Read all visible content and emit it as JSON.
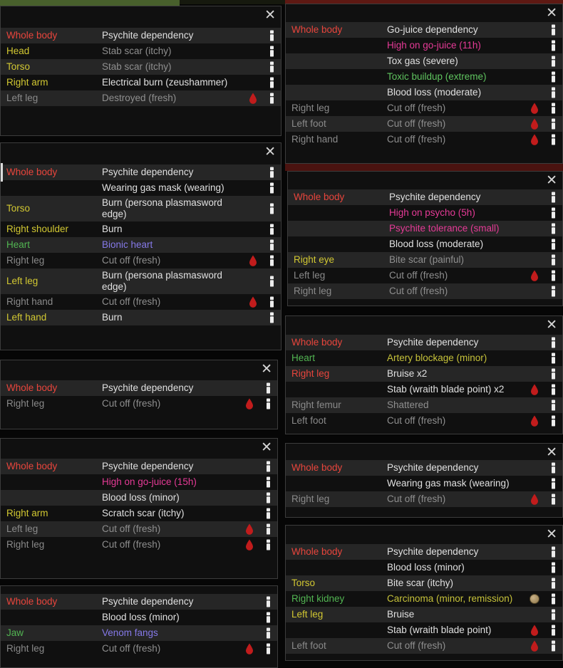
{
  "ui": {
    "close_glyph": "✕"
  },
  "colors": {
    "panel_bg": "#101010",
    "row_alt_bg": "#262626",
    "part_red": "#e8453c",
    "part_yellow": "#d2c832",
    "part_green": "#52b552",
    "part_gray": "#8a8a8a",
    "cond_white": "#e0e0e0",
    "cond_gray": "#8f8f8f",
    "cond_magenta": "#e53a96",
    "cond_green": "#5fc45f",
    "cond_purple": "#8579e8",
    "cond_yellow": "#c6c23a",
    "blood_red": "#c11c1c",
    "carcinoma_tan": "#b49c6a"
  },
  "icons": {
    "info": "info-icon",
    "bleeding": "blood-drop-icon",
    "tumor": "carcinoma-icon",
    "close": "close-icon",
    "scrollbar": "scrollbar-thumb"
  },
  "panels": [
    {
      "has_close": true,
      "rows": [
        {
          "part": "Whole body",
          "part_color": "red",
          "condition": "Psychite dependency",
          "condition_color": "white",
          "bleeding": false
        },
        {
          "part": "Head",
          "part_color": "yellow",
          "condition": "Stab scar (itchy)",
          "condition_color": "gray",
          "bleeding": false
        },
        {
          "part": "Torso",
          "part_color": "yellow",
          "condition": "Stab scar (itchy)",
          "condition_color": "gray",
          "bleeding": false
        },
        {
          "part": "Right arm",
          "part_color": "yellow",
          "condition": "Electrical burn (zeushammer)",
          "condition_color": "white",
          "bleeding": false
        },
        {
          "part": "Left leg",
          "part_color": "gray",
          "condition": "Destroyed (fresh)",
          "condition_color": "gray",
          "bleeding": true
        }
      ]
    },
    {
      "has_close": true,
      "rows": [
        {
          "part": "Whole body",
          "part_color": "red",
          "condition": "Go-juice dependency",
          "condition_color": "white",
          "bleeding": false
        },
        {
          "part": "",
          "part_color": "none",
          "condition": "High on go-juice (11h)",
          "condition_color": "magenta",
          "bleeding": false
        },
        {
          "part": "",
          "part_color": "none",
          "condition": "Tox gas (severe)",
          "condition_color": "white",
          "bleeding": false
        },
        {
          "part": "",
          "part_color": "none",
          "condition": "Toxic buildup (extreme)",
          "condition_color": "green",
          "bleeding": false
        },
        {
          "part": "",
          "part_color": "none",
          "condition": "Blood loss (moderate)",
          "condition_color": "white",
          "bleeding": false
        },
        {
          "part": "Right leg",
          "part_color": "gray",
          "condition": "Cut off (fresh)",
          "condition_color": "gray",
          "bleeding": true
        },
        {
          "part": "Left foot",
          "part_color": "gray",
          "condition": "Cut off (fresh)",
          "condition_color": "gray",
          "bleeding": true
        },
        {
          "part": "Right hand",
          "part_color": "gray",
          "condition": "Cut off (fresh)",
          "condition_color": "gray",
          "bleeding": true
        }
      ]
    },
    {
      "has_close": true,
      "rows": [
        {
          "part": "Whole body",
          "part_color": "red",
          "condition": "Psychite dependency",
          "condition_color": "white",
          "bleeding": false
        },
        {
          "part": "",
          "part_color": "none",
          "condition": "Wearing gas mask (wearing)",
          "condition_color": "white",
          "bleeding": false
        },
        {
          "part": "Torso",
          "part_color": "yellow",
          "condition": "Burn (persona plasmasword edge)",
          "condition_color": "white",
          "bleeding": false
        },
        {
          "part": "Right shoulder",
          "part_color": "yellow",
          "condition": "Burn",
          "condition_color": "white",
          "bleeding": false
        },
        {
          "part": "Heart",
          "part_color": "green",
          "condition": "Bionic heart",
          "condition_color": "purple",
          "bleeding": false
        },
        {
          "part": "Right leg",
          "part_color": "gray",
          "condition": "Cut off (fresh)",
          "condition_color": "gray",
          "bleeding": true
        },
        {
          "part": "Left leg",
          "part_color": "yellow",
          "condition": "Burn (persona plasmasword edge)",
          "condition_color": "white",
          "bleeding": false
        },
        {
          "part": "Right hand",
          "part_color": "gray",
          "condition": "Cut off (fresh)",
          "condition_color": "gray",
          "bleeding": true
        },
        {
          "part": "Left hand",
          "part_color": "yellow",
          "condition": "Burn",
          "condition_color": "white",
          "bleeding": false
        }
      ]
    },
    {
      "has_close": true,
      "rows": [
        {
          "part": "Whole body",
          "part_color": "red",
          "condition": "Psychite dependency",
          "condition_color": "white",
          "bleeding": false
        },
        {
          "part": "",
          "part_color": "none",
          "condition": "High on psycho (5h)",
          "condition_color": "magenta",
          "bleeding": false
        },
        {
          "part": "",
          "part_color": "none",
          "condition": "Psychite tolerance (small)",
          "condition_color": "magenta",
          "bleeding": false
        },
        {
          "part": "",
          "part_color": "none",
          "condition": "Blood loss (moderate)",
          "condition_color": "white",
          "bleeding": false
        },
        {
          "part": "Right eye",
          "part_color": "yellow",
          "condition": "Bite scar (painful)",
          "condition_color": "gray",
          "bleeding": false
        },
        {
          "part": "Left leg",
          "part_color": "gray",
          "condition": "Cut off (fresh)",
          "condition_color": "gray",
          "bleeding": true
        },
        {
          "part": "Right leg",
          "part_color": "gray",
          "condition": "Cut off (fresh)",
          "condition_color": "gray",
          "bleeding": false
        }
      ]
    },
    {
      "has_close": true,
      "rows": [
        {
          "part": "Whole body",
          "part_color": "red",
          "condition": "Psychite dependency",
          "condition_color": "white",
          "bleeding": false
        },
        {
          "part": "Heart",
          "part_color": "green",
          "condition": "Artery blockage (minor)",
          "condition_color": "yellow",
          "bleeding": false
        },
        {
          "part": "Right leg",
          "part_color": "red",
          "condition": "Bruise x2",
          "condition_color": "white",
          "bleeding": false
        },
        {
          "part": "",
          "part_color": "none",
          "condition": "Stab (wraith blade point) x2",
          "condition_color": "white",
          "bleeding": true
        },
        {
          "part": "Right femur",
          "part_color": "gray",
          "condition": "Shattered",
          "condition_color": "gray",
          "bleeding": false
        },
        {
          "part": "Left foot",
          "part_color": "gray",
          "condition": "Cut off (fresh)",
          "condition_color": "gray",
          "bleeding": true
        }
      ]
    },
    {
      "has_close": true,
      "rows": [
        {
          "part": "Whole body",
          "part_color": "red",
          "condition": "Psychite dependency",
          "condition_color": "white",
          "bleeding": false
        },
        {
          "part": "Right leg",
          "part_color": "gray",
          "condition": "Cut off (fresh)",
          "condition_color": "gray",
          "bleeding": true
        }
      ]
    },
    {
      "has_close": true,
      "rows": [
        {
          "part": "Whole body",
          "part_color": "red",
          "condition": "Psychite dependency",
          "condition_color": "white",
          "bleeding": false
        },
        {
          "part": "",
          "part_color": "none",
          "condition": "High on go-juice (15h)",
          "condition_color": "magenta",
          "bleeding": false
        },
        {
          "part": "",
          "part_color": "none",
          "condition": "Blood loss (minor)",
          "condition_color": "white",
          "bleeding": false
        },
        {
          "part": "Right arm",
          "part_color": "yellow",
          "condition": "Scratch scar (itchy)",
          "condition_color": "white",
          "bleeding": false
        },
        {
          "part": "Left leg",
          "part_color": "gray",
          "condition": "Cut off (fresh)",
          "condition_color": "gray",
          "bleeding": true
        },
        {
          "part": "Right leg",
          "part_color": "gray",
          "condition": "Cut off (fresh)",
          "condition_color": "gray",
          "bleeding": true
        }
      ]
    },
    {
      "has_close": true,
      "rows": [
        {
          "part": "Whole body",
          "part_color": "red",
          "condition": "Psychite dependency",
          "condition_color": "white",
          "bleeding": false
        },
        {
          "part": "",
          "part_color": "none",
          "condition": "Wearing gas mask (wearing)",
          "condition_color": "white",
          "bleeding": false
        },
        {
          "part": "Right leg",
          "part_color": "gray",
          "condition": "Cut off (fresh)",
          "condition_color": "gray",
          "bleeding": true
        }
      ]
    },
    {
      "has_close": false,
      "rows": [
        {
          "part": "Whole body",
          "part_color": "red",
          "condition": "Psychite dependency",
          "condition_color": "white",
          "bleeding": false
        },
        {
          "part": "",
          "part_color": "none",
          "condition": "Blood loss (minor)",
          "condition_color": "white",
          "bleeding": false
        },
        {
          "part": "Jaw",
          "part_color": "green",
          "condition": "Venom fangs",
          "condition_color": "purple",
          "bleeding": false
        },
        {
          "part": "Right leg",
          "part_color": "gray",
          "condition": "Cut off (fresh)",
          "condition_color": "gray",
          "bleeding": true
        }
      ]
    },
    {
      "has_close": true,
      "rows": [
        {
          "part": "Whole body",
          "part_color": "red",
          "condition": "Psychite dependency",
          "condition_color": "white",
          "bleeding": false
        },
        {
          "part": "",
          "part_color": "none",
          "condition": "Blood loss (minor)",
          "condition_color": "white",
          "bleeding": false
        },
        {
          "part": "Torso",
          "part_color": "yellow",
          "condition": "Bite scar (itchy)",
          "condition_color": "white",
          "bleeding": false
        },
        {
          "part": "Right kidney",
          "part_color": "green",
          "condition": "Carcinoma (minor, remission)",
          "condition_color": "yellow",
          "bleeding": false,
          "tumor": true
        },
        {
          "part": "Left leg",
          "part_color": "yellow",
          "condition": "Bruise",
          "condition_color": "white",
          "bleeding": false
        },
        {
          "part": "",
          "part_color": "none",
          "condition": "Stab (wraith blade point)",
          "condition_color": "white",
          "bleeding": true
        },
        {
          "part": "Left foot",
          "part_color": "gray",
          "condition": "Cut off (fresh)",
          "condition_color": "gray",
          "bleeding": true
        }
      ]
    }
  ]
}
